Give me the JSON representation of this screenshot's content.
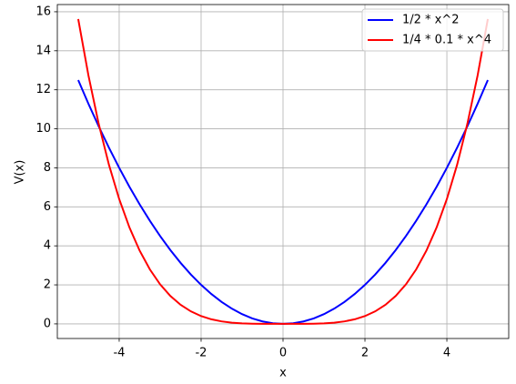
{
  "chart_data": {
    "type": "line",
    "x_label": "x",
    "y_label": "V(x)",
    "x": [
      -5,
      -4.75,
      -4.5,
      -4.25,
      -4,
      -3.75,
      -3.5,
      -3.25,
      -3,
      -2.75,
      -2.5,
      -2.25,
      -2,
      -1.75,
      -1.5,
      -1.25,
      -1,
      -0.75,
      -0.5,
      -0.25,
      0,
      0.25,
      0.5,
      0.75,
      1,
      1.25,
      1.5,
      1.75,
      2,
      2.25,
      2.5,
      2.75,
      3,
      3.25,
      3.5,
      3.75,
      4,
      4.25,
      4.5,
      4.75,
      5
    ],
    "series": [
      {
        "name": "1/2 * x^2",
        "color": "#0000ff",
        "values": [
          12.5,
          11.281,
          10.125,
          9.031,
          8,
          7.031,
          6.125,
          5.281,
          4.5,
          3.781,
          3.125,
          2.531,
          2,
          1.531,
          1.125,
          0.781,
          0.5,
          0.281,
          0.125,
          0.031,
          0,
          0.031,
          0.125,
          0.281,
          0.5,
          0.781,
          1.125,
          1.531,
          2,
          2.531,
          3.125,
          3.781,
          4.5,
          5.281,
          6.125,
          7.031,
          8,
          9.031,
          10.125,
          11.281,
          12.5
        ]
      },
      {
        "name": "1/4 * 0.1 * x^4",
        "color": "#ff0000",
        "values": [
          15.625,
          12.727,
          10.252,
          8.156,
          6.4,
          4.944,
          3.752,
          2.789,
          2.025,
          1.43,
          0.977,
          0.641,
          0.4,
          0.234,
          0.127,
          0.061,
          0.025,
          0.008,
          0.002,
          0.0001,
          0,
          0.0001,
          0.002,
          0.008,
          0.025,
          0.061,
          0.127,
          0.234,
          0.4,
          0.641,
          0.977,
          1.43,
          2.025,
          2.789,
          3.752,
          4.944,
          6.4,
          8.156,
          10.252,
          12.727,
          15.625
        ]
      }
    ],
    "xlim": [
      -5.51,
      5.51
    ],
    "ylim": [
      -0.75,
      16.37
    ],
    "xticks": [
      -4,
      -2,
      0,
      2,
      4
    ],
    "yticks": [
      0,
      2,
      4,
      6,
      8,
      10,
      12,
      14,
      16
    ],
    "grid": true,
    "legend": "upper right"
  }
}
